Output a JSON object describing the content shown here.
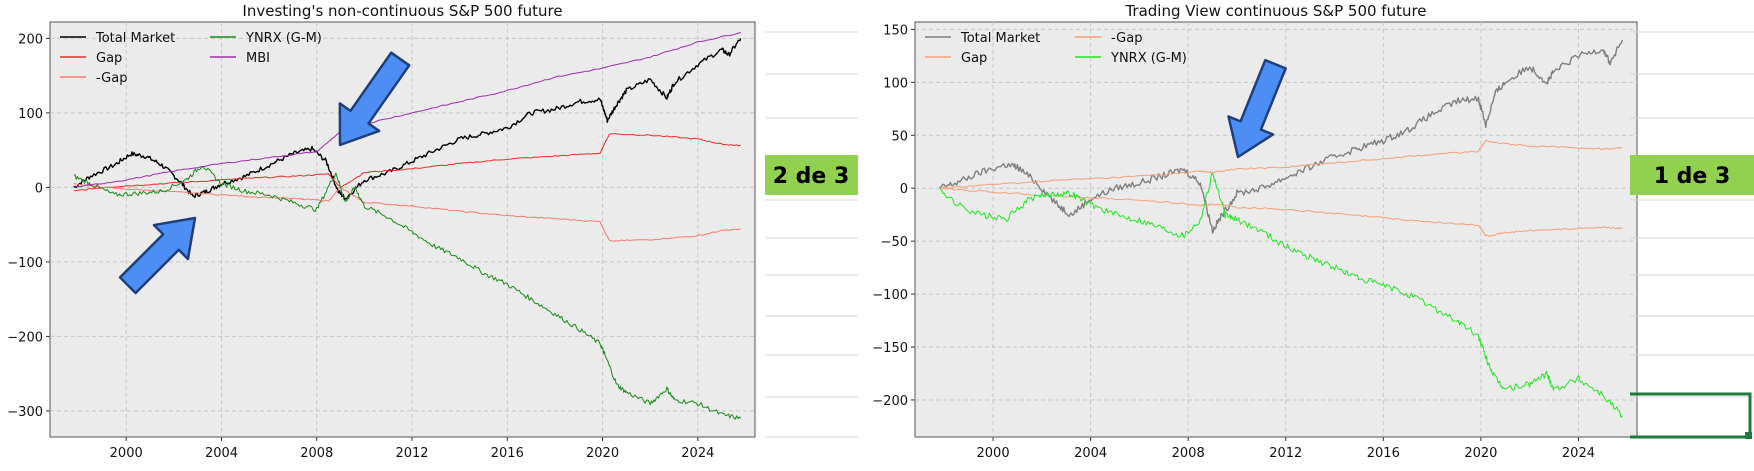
{
  "colors": {
    "panel_bg": "#ebebeb",
    "grid": "#c7c7c7",
    "badge_bg": "#92d050",
    "arrow_fill": "#4d8ef5",
    "arrow_stroke": "#1f3f7a",
    "excel_border": "#1e7a3c"
  },
  "badges": {
    "left": "2 de 3",
    "right": "1 de 3"
  },
  "icons": {
    "arrows": "arrow-icon"
  },
  "chart_data": [
    {
      "type": "line",
      "title": "Investing's non-continuous S&P 500 future",
      "xlabel": "",
      "ylabel": "",
      "xlim": [
        1996.8,
        2026.4
      ],
      "ylim": [
        -335,
        222
      ],
      "xticks": [
        2000,
        2004,
        2008,
        2012,
        2016,
        2020,
        2024
      ],
      "yticks": [
        -300,
        -200,
        -100,
        0,
        100,
        200
      ],
      "grid": true,
      "legend": "top-left",
      "series": [
        {
          "name": "Total Market",
          "color": "#000000",
          "x": [
            1997.8,
            1998.5,
            1999.5,
            2000.2,
            2000.8,
            2001.5,
            2002.2,
            2002.8,
            2003.4,
            2004.0,
            2005.0,
            2006.0,
            2007.0,
            2007.8,
            2008.4,
            2008.9,
            2009.2,
            2010.0,
            2011.0,
            2012.0,
            2013.0,
            2014.0,
            2015.0,
            2016.0,
            2017.0,
            2018.0,
            2019.0,
            2019.9,
            2020.2,
            2020.6,
            2021.0,
            2022.0,
            2022.7,
            2023.0,
            2024.0,
            2025.0,
            2025.3,
            2025.8
          ],
          "y": [
            0,
            15,
            30,
            45,
            42,
            30,
            10,
            -12,
            -5,
            5,
            15,
            30,
            45,
            52,
            35,
            -5,
            -15,
            10,
            20,
            35,
            50,
            65,
            72,
            80,
            100,
            105,
            115,
            118,
            90,
            112,
            130,
            145,
            120,
            140,
            165,
            185,
            178,
            200
          ]
        },
        {
          "name": "Gap",
          "color": "#e4302b",
          "x": [
            1997.8,
            1999.0,
            2001.0,
            2003.0,
            2005.0,
            2007.0,
            2008.5,
            2009.0,
            2010.0,
            2012.0,
            2014.0,
            2016.0,
            2018.0,
            2019.9,
            2020.1,
            2020.3,
            2022.0,
            2024.0,
            2025.0,
            2025.8
          ],
          "y": [
            -5,
            0,
            4,
            8,
            12,
            15,
            18,
            0,
            20,
            25,
            32,
            38,
            42,
            46,
            60,
            72,
            70,
            65,
            58,
            56
          ]
        },
        {
          "name": "-Gap",
          "color": "#f27d73",
          "x": [
            1997.8,
            1999.0,
            2001.0,
            2003.0,
            2005.0,
            2007.0,
            2008.5,
            2009.0,
            2010.0,
            2012.0,
            2014.0,
            2016.0,
            2018.0,
            2019.9,
            2020.1,
            2020.3,
            2022.0,
            2024.0,
            2025.0,
            2025.8
          ],
          "y": [
            5,
            0,
            -4,
            -8,
            -12,
            -15,
            -18,
            0,
            -20,
            -25,
            -32,
            -38,
            -42,
            -46,
            -60,
            -72,
            -70,
            -65,
            -58,
            -56
          ]
        },
        {
          "name": "YNRX (G-M)",
          "color": "#1a8a1a",
          "x": [
            1997.8,
            1998.5,
            1999.5,
            2000.5,
            2001.5,
            2002.5,
            2003.2,
            2004.0,
            2005.0,
            2006.0,
            2007.0,
            2008.0,
            2008.8,
            2009.2,
            2009.6,
            2010.0,
            2011.0,
            2012.0,
            2013.0,
            2014.0,
            2015.0,
            2016.0,
            2017.0,
            2018.0,
            2019.0,
            2019.9,
            2020.1,
            2020.6,
            2021.0,
            2022.0,
            2022.7,
            2023.0,
            2024.0,
            2025.0,
            2025.8
          ],
          "y": [
            15,
            5,
            -10,
            -8,
            -5,
            10,
            30,
            5,
            -5,
            -10,
            -20,
            -30,
            20,
            -20,
            0,
            -25,
            -40,
            -60,
            -80,
            -95,
            -115,
            -130,
            -150,
            -170,
            -190,
            -210,
            -225,
            -265,
            -275,
            -290,
            -270,
            -285,
            -290,
            -305,
            -310
          ]
        },
        {
          "name": "MBI",
          "color": "#9a2fa8",
          "x": [
            1997.8,
            2000.0,
            2002.0,
            2004.0,
            2006.0,
            2008.0,
            2009.0,
            2010.0,
            2012.0,
            2014.0,
            2016.0,
            2018.0,
            2020.0,
            2022.0,
            2024.0,
            2025.8
          ],
          "y": [
            0,
            10,
            22,
            32,
            40,
            48,
            75,
            85,
            100,
            115,
            130,
            148,
            160,
            175,
            195,
            208
          ]
        }
      ]
    },
    {
      "type": "line",
      "title": "Trading View continuous S&P 500 future",
      "xlabel": "",
      "ylabel": "",
      "xlim": [
        1996.8,
        2026.4
      ],
      "ylim": [
        -235,
        157
      ],
      "xticks": [
        2000,
        2004,
        2008,
        2012,
        2016,
        2020,
        2024
      ],
      "yticks": [
        -200,
        -150,
        -100,
        -50,
        0,
        50,
        100,
        150
      ],
      "grid": true,
      "legend": "top-left",
      "series": [
        {
          "name": "Total Market",
          "color": "#808080",
          "x": [
            1997.8,
            1998.5,
            1999.5,
            2000.5,
            2001.0,
            2001.8,
            2002.6,
            2003.2,
            2004.0,
            2005.0,
            2006.0,
            2007.0,
            2007.8,
            2008.5,
            2009.0,
            2009.4,
            2010.0,
            2011.0,
            2012.0,
            2013.0,
            2014.0,
            2015.0,
            2016.0,
            2017.0,
            2018.0,
            2019.0,
            2019.9,
            2020.2,
            2020.6,
            2021.0,
            2022.0,
            2022.7,
            2023.0,
            2024.0,
            2025.0,
            2025.3,
            2025.8
          ],
          "y": [
            0,
            5,
            15,
            22,
            20,
            5,
            -15,
            -25,
            -10,
            0,
            5,
            12,
            18,
            5,
            -40,
            -25,
            -5,
            0,
            10,
            20,
            30,
            38,
            45,
            55,
            70,
            82,
            85,
            60,
            90,
            100,
            115,
            100,
            110,
            125,
            132,
            118,
            140
          ]
        },
        {
          "name": "Gap",
          "color": "#f8a07a",
          "x": [
            1997.8,
            1999.0,
            2001.0,
            2003.0,
            2005.0,
            2007.0,
            2008.5,
            2009.0,
            2010.0,
            2012.0,
            2014.0,
            2016.0,
            2018.0,
            2019.9,
            2020.2,
            2021.0,
            2022.0,
            2024.0,
            2025.0,
            2025.8
          ],
          "y": [
            0,
            2,
            5,
            8,
            10,
            13,
            16,
            15,
            18,
            20,
            24,
            28,
            32,
            35,
            45,
            42,
            40,
            38,
            37,
            38
          ]
        },
        {
          "name": "-Gap",
          "color": "#f8a07a",
          "x": [
            1997.8,
            1999.0,
            2001.0,
            2003.0,
            2005.0,
            2007.0,
            2008.5,
            2009.0,
            2010.0,
            2012.0,
            2014.0,
            2016.0,
            2018.0,
            2019.9,
            2020.2,
            2021.0,
            2022.0,
            2024.0,
            2025.0,
            2025.8
          ],
          "y": [
            0,
            -2,
            -5,
            -8,
            -10,
            -13,
            -16,
            -15,
            -18,
            -20,
            -24,
            -28,
            -32,
            -35,
            -45,
            -42,
            -40,
            -38,
            -37,
            -38
          ]
        },
        {
          "name": "YNRX (G-M)",
          "color": "#22e622",
          "x": [
            1997.8,
            1998.5,
            1999.5,
            2000.5,
            2001.5,
            2002.5,
            2003.2,
            2004.0,
            2005.0,
            2006.0,
            2007.0,
            2007.8,
            2008.5,
            2009.0,
            2009.5,
            2010.0,
            2011.0,
            2012.0,
            2013.0,
            2014.0,
            2015.0,
            2016.0,
            2017.0,
            2018.0,
            2019.0,
            2019.9,
            2020.2,
            2020.6,
            2021.0,
            2022.0,
            2022.7,
            2023.0,
            2024.0,
            2025.0,
            2025.8
          ],
          "y": [
            0,
            -15,
            -25,
            -30,
            -10,
            -5,
            -5,
            -15,
            -25,
            -30,
            -38,
            -45,
            -30,
            15,
            -25,
            -30,
            -40,
            -55,
            -65,
            -75,
            -85,
            -92,
            -100,
            -112,
            -125,
            -140,
            -160,
            -180,
            -190,
            -185,
            -175,
            -190,
            -180,
            -195,
            -215
          ]
        }
      ]
    }
  ]
}
